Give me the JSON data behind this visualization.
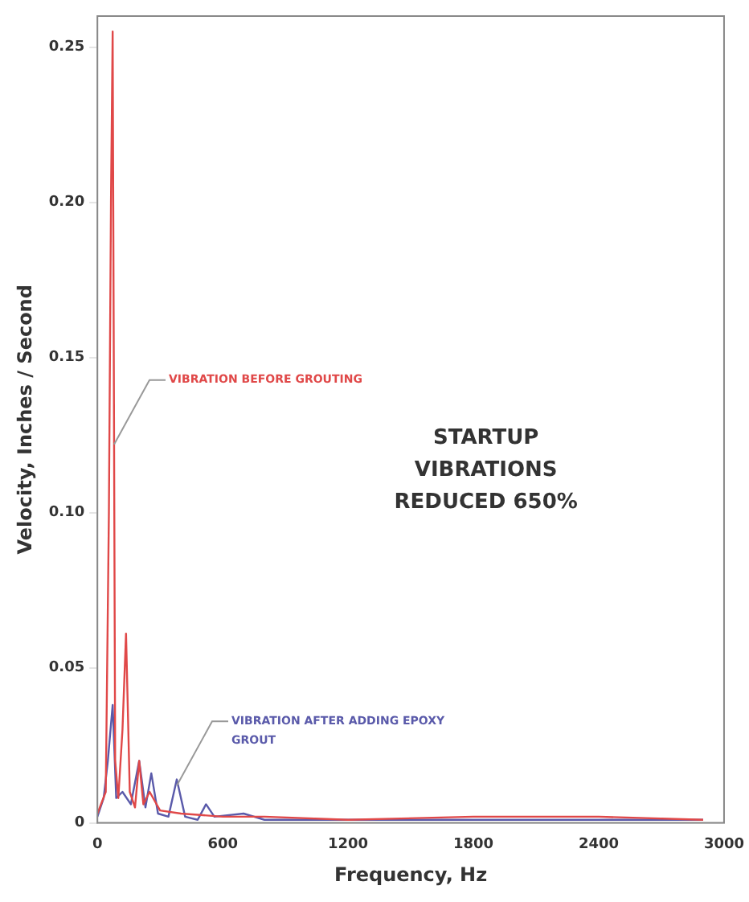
{
  "chart_data": {
    "type": "line",
    "xlabel": "Frequency, Hz",
    "ylabel": "Velocity, Inches / Second",
    "series": [
      {
        "color": "#e04848",
        "x": [
          0,
          40,
          55,
          65,
          73,
          85,
          100,
          120,
          137,
          155,
          180,
          200,
          220,
          250,
          300,
          400,
          600,
          800,
          1200,
          1800,
          2400,
          2900
        ],
        "values": [
          0.003,
          0.01,
          0.1,
          0.2,
          0.255,
          0.02,
          0.008,
          0.03,
          0.061,
          0.01,
          0.005,
          0.02,
          0.006,
          0.01,
          0.004,
          0.003,
          0.002,
          0.002,
          0.001,
          0.002,
          0.002,
          0.001
        ]
      },
      {
        "color": "#5a5aaa",
        "x": [
          0,
          30,
          50,
          73,
          90,
          120,
          160,
          200,
          230,
          258,
          290,
          340,
          380,
          420,
          480,
          520,
          560,
          700,
          800,
          1500,
          2400,
          2900
        ],
        "values": [
          0.002,
          0.008,
          0.02,
          0.038,
          0.008,
          0.01,
          0.006,
          0.02,
          0.005,
          0.016,
          0.003,
          0.002,
          0.014,
          0.002,
          0.001,
          0.006,
          0.002,
          0.003,
          0.001,
          0.001,
          0.001,
          0.001
        ]
      }
    ],
    "xlim": [
      0,
      3000
    ],
    "xticks": [
      0,
      600,
      1200,
      1800,
      2400,
      3000
    ],
    "ylim": [
      0,
      0.26
    ],
    "yticks": [
      0,
      0.05,
      {
        "value": 0.1,
        "label": "0.10"
      },
      0.15,
      {
        "value": 0.2,
        "label": "0.20"
      },
      0.25
    ],
    "grid": false,
    "legend": false,
    "marker": "none",
    "line_style": "solid",
    "annotations": [
      {
        "text": "VIBRATION BEFORE GROUTING",
        "x": 80,
        "y": 0.122
      },
      {
        "text": "VIBRATION AFTER ADDING EPOXY GROUT",
        "x": 380,
        "y": 0.012
      },
      "STARTUP VIBRATIONS REDUCED 650%"
    ]
  }
}
